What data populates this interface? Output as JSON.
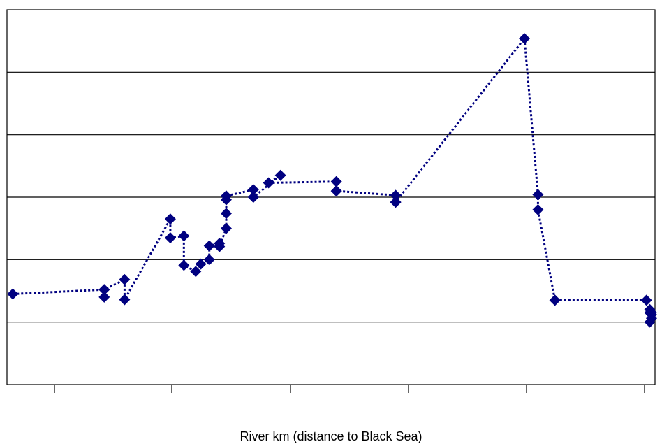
{
  "chart_data": {
    "type": "line",
    "title": "",
    "xlabel": "River km (distance to Black Sea)",
    "ylabel": "",
    "grid": true,
    "legend": "none",
    "series": [
      {
        "color": "#000080",
        "marker": "diamond",
        "line_style": "dotted",
        "x": [
          2857,
          2803,
          2803,
          2803,
          2791,
          2791,
          2764,
          2764,
          2756,
          2756,
          2749,
          2746,
          2741,
          2741,
          2735,
          2735,
          2731,
          2731,
          2731,
          2731,
          2715,
          2715,
          2715,
          2699,
          2706,
          2666,
          2666,
          2666,
          2631,
          2631,
          2631,
          2555,
          2547,
          2547,
          2537,
          2537,
          2483,
          2481,
          2481,
          2480,
          2481,
          2480,
          2480
        ],
        "y": [
          1.45,
          1.52,
          1.4,
          1.52,
          1.68,
          1.36,
          2.65,
          2.35,
          2.38,
          1.91,
          1.81,
          1.93,
          2.0,
          2.22,
          2.26,
          2.21,
          2.5,
          2.74,
          2.96,
          3.02,
          3.12,
          3.0,
          3.0,
          3.35,
          3.23,
          3.25,
          3.1,
          3.1,
          3.03,
          2.92,
          2.92,
          5.54,
          3.04,
          2.8,
          1.35,
          1.35,
          1.35,
          1.2,
          1.15,
          1.06,
          1.0,
          1.12,
          1.15
        ]
      }
    ]
  }
}
